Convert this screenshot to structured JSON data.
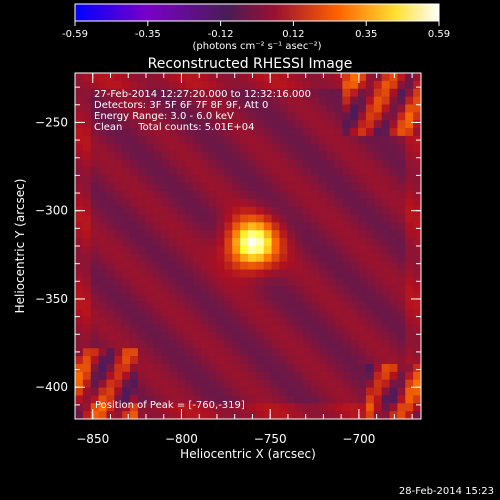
{
  "chart_data": {
    "type": "heatmap",
    "title": "Reconstructed RHESSI Image",
    "xlabel": "Heliocentric X (arcsec)",
    "ylabel": "Heliocentric Y (arcsec)",
    "xlim": [
      -860,
      -665
    ],
    "ylim": [
      -418,
      -222
    ],
    "xticks": [
      -850,
      -800,
      -750,
      -700
    ],
    "yticks": [
      -250,
      -300,
      -350,
      -400
    ],
    "colorbar": {
      "min": -0.59,
      "max": 0.59,
      "ticks": [
        "-0.59",
        "-0.35",
        "-0.12",
        "0.12",
        "0.35",
        "0.59"
      ],
      "label": "(photons cm⁻² s⁻¹ asec⁻²)",
      "colors": [
        "#0000ff",
        "#7a00c8",
        "#4c1b5a",
        "#b01020",
        "#ff7000",
        "#ffff30",
        "#ffffff"
      ]
    },
    "peak": {
      "x": -760,
      "y": -319,
      "value": 0.59
    },
    "annotations": [
      "27-Feb-2014 12:27:20.000 to 12:32:16.000",
      "Detectors: 3F 5F 6F 7F 8F 9F, Att 0",
      "Energy Range: 3.0 - 6.0 keV",
      "Clean     Total counts: 5.01E+04"
    ],
    "peak_label": "Position of Peak = [-760,-319]"
  },
  "footer": {
    "timestamp": "28-Feb-2014 15:23"
  }
}
